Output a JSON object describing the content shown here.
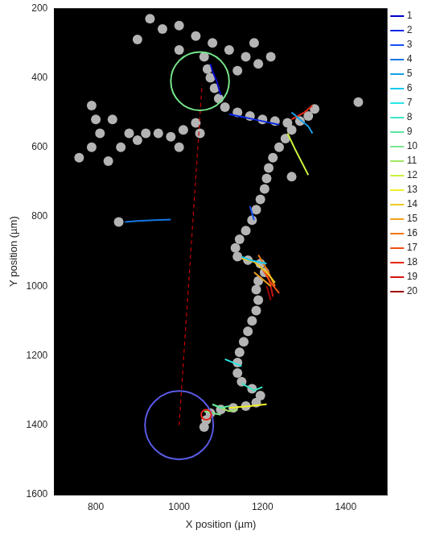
{
  "chart_data": {
    "type": "line",
    "x_label": "X position (µm)",
    "y_label": "Y position (µm)",
    "xlim": [
      700,
      1500
    ],
    "ylim": [
      200,
      1600
    ],
    "xticks": [
      800,
      1000,
      1200,
      1400
    ],
    "yticks": [
      200,
      400,
      600,
      800,
      1000,
      1200,
      1400,
      1600
    ],
    "grid": false,
    "legend": "right",
    "series": [
      {
        "name": "1",
        "color": "#0000c8",
        "x": [
          1075,
          1080,
          1090,
          1100
        ],
        "y": [
          360,
          380,
          410,
          450
        ]
      },
      {
        "name": "2",
        "color": "#0a28e6",
        "x": [
          1120,
          1160,
          1200,
          1240
        ],
        "y": [
          505,
          515,
          525,
          535
        ]
      },
      {
        "name": "3",
        "color": "#1450f0",
        "x": [
          1170,
          1175,
          1180
        ],
        "y": [
          770,
          790,
          810
        ]
      },
      {
        "name": "4",
        "color": "#1478e6",
        "x": [
          870,
          900,
          940,
          980
        ],
        "y": [
          815,
          812,
          810,
          808
        ]
      },
      {
        "name": "5",
        "color": "#14a0e6",
        "x": [
          1270,
          1290,
          1310,
          1320
        ],
        "y": [
          500,
          520,
          540,
          560
        ]
      },
      {
        "name": "6",
        "color": "#14c8f0",
        "x": [
          1150,
          1170,
          1190,
          1210
        ],
        "y": [
          915,
          925,
          930,
          935
        ]
      },
      {
        "name": "7",
        "color": "#28e6e6",
        "x": [
          1110,
          1130,
          1150
        ],
        "y": [
          1210,
          1220,
          1230
        ]
      },
      {
        "name": "8",
        "color": "#3ce6c8",
        "x": [
          1150,
          1180,
          1200
        ],
        "y": [
          1280,
          1300,
          1290
        ]
      },
      {
        "name": "9",
        "color": "#5ae6a0",
        "x": [
          1080,
          1100,
          1120
        ],
        "y": [
          1340,
          1350,
          1345
        ]
      },
      {
        "name": "10",
        "color": "#78e68c",
        "x": [
          1060,
          1080,
          1100
        ],
        "y": [
          1360,
          1365,
          1370
        ]
      },
      {
        "name": "11",
        "color": "#a0e664",
        "x": [
          1080,
          1100,
          1120,
          1140
        ],
        "y": [
          1340,
          1350,
          1360,
          1355
        ]
      },
      {
        "name": "12",
        "color": "#c8f03c",
        "x": [
          1260,
          1280,
          1310
        ],
        "y": [
          560,
          610,
          680
        ]
      },
      {
        "name": "13",
        "color": "#f0f028",
        "x": [
          1120,
          1170,
          1210
        ],
        "y": [
          1350,
          1345,
          1340
        ]
      },
      {
        "name": "14",
        "color": "#f0c81e",
        "x": [
          1150,
          1180,
          1210,
          1230
        ],
        "y": [
          920,
          930,
          960,
          990
        ]
      },
      {
        "name": "15",
        "color": "#f0a01e",
        "x": [
          1180,
          1200,
          1220
        ],
        "y": [
          960,
          980,
          1000
        ]
      },
      {
        "name": "16",
        "color": "#f07814",
        "x": [
          1190,
          1210,
          1230
        ],
        "y": [
          910,
          950,
          1000
        ]
      },
      {
        "name": "17",
        "color": "#f05014",
        "x": [
          1200,
          1220,
          1240
        ],
        "y": [
          950,
          990,
          1020
        ]
      },
      {
        "name": "18",
        "color": "#e62814",
        "x": [
          1270,
          1300,
          1320
        ],
        "y": [
          520,
          500,
          480
        ]
      },
      {
        "name": "19",
        "color": "#d21414",
        "x": [
          1210,
          1220,
          1225
        ],
        "y": [
          960,
          1000,
          1030
        ]
      },
      {
        "name": "20",
        "color": "#a00000",
        "x": [
          1210,
          1215,
          1220
        ],
        "y": [
          1000,
          1020,
          1040
        ]
      }
    ],
    "trail": {
      "color": "#b4b4b4",
      "x": [
        1068,
        1075,
        1085,
        1095,
        1110,
        1140,
        1170,
        1200,
        1230,
        1260,
        1290,
        1310,
        1325,
        1270,
        1255,
        1240,
        1225,
        1215,
        1210,
        1205,
        1195,
        1185,
        1175,
        1160,
        1145,
        1135,
        1140,
        1165,
        1195,
        1205,
        1190,
        1185,
        1190,
        1185,
        1175,
        1165,
        1155,
        1145,
        1140,
        1140,
        1150,
        1175,
        1195,
        1185,
        1160,
        1130,
        1100,
        1075,
        1065,
        1060,
        790,
        800,
        810,
        790,
        830,
        860,
        880,
        900,
        920,
        950,
        980,
        1010,
        1040,
        760,
        840,
        1000,
        1050,
        930,
        960,
        1000,
        1040,
        1080,
        1120,
        1160,
        1190,
        1000,
        1060,
        900,
        1140,
        1180,
        1220,
        1430,
        855,
        1270
      ],
      "y": [
        375,
        400,
        430,
        460,
        485,
        500,
        510,
        520,
        525,
        530,
        525,
        510,
        490,
        550,
        575,
        600,
        630,
        660,
        690,
        720,
        750,
        780,
        810,
        840,
        865,
        890,
        915,
        925,
        935,
        960,
        985,
        1010,
        1040,
        1070,
        1100,
        1130,
        1160,
        1190,
        1220,
        1250,
        1275,
        1295,
        1315,
        1335,
        1345,
        1350,
        1355,
        1365,
        1385,
        1405,
        480,
        520,
        560,
        600,
        640,
        600,
        560,
        580,
        560,
        560,
        570,
        550,
        530,
        630,
        520,
        600,
        560,
        230,
        260,
        250,
        280,
        300,
        320,
        340,
        360,
        320,
        340,
        290,
        380,
        300,
        340,
        470,
        815,
        685
      ]
    },
    "dashed_line": {
      "color": "#c80000",
      "line_style": "dashed",
      "x": [
        1000,
        1055
      ],
      "y": [
        1400,
        420
      ]
    },
    "circles": [
      {
        "x": 1050,
        "y": 410,
        "radius": 70,
        "color": "#78e68c"
      },
      {
        "x": 1000,
        "y": 1400,
        "radius": 82,
        "color": "#5a5ae6"
      },
      {
        "x": 1065,
        "y": 1370,
        "radius": 12,
        "color": "#e62814"
      }
    ]
  }
}
